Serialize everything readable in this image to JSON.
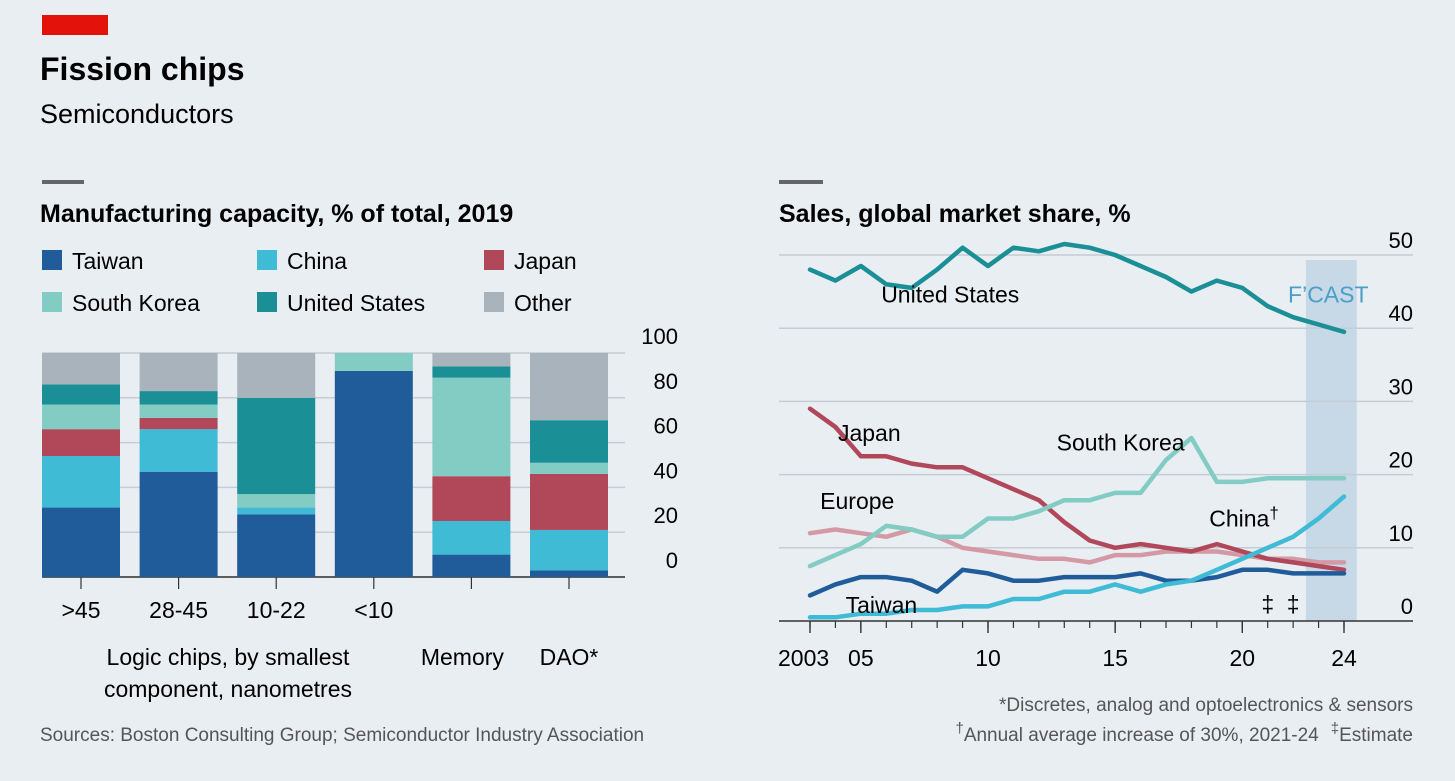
{
  "header": {
    "title": "Fission chips",
    "subtitle": "Semiconductors"
  },
  "colors": {
    "red_tag": "#e3120b",
    "bg": "#e9eef3",
    "Taiwan": "#1f5c99",
    "China": "#3fbbd6",
    "Japan": "#b0485a",
    "South Korea": "#82ccc3",
    "United States": "#1a8f96",
    "Other": "#a9b3bc",
    "Europe": "#d39aa6",
    "forecast_band": "#c7d8e6"
  },
  "footer": {
    "sources": "Sources: Boston Consulting Group; Semiconductor Industry Association",
    "note1": "*Discretes, analog and optoelectronics & sensors",
    "note2_mark": "†",
    "note2": "Annual average increase of 30%, 2021-24",
    "note3_mark": "‡",
    "note3": "Estimate"
  },
  "chart_data": [
    {
      "type": "bar",
      "stacked": true,
      "title": "Manufacturing capacity, % of total, 2019",
      "categories": [
        ">45",
        "28-45",
        "10-22",
        "<10",
        "Memory",
        "DAO*"
      ],
      "group_label": "Logic chips, by smallest component, nanometres",
      "legend": [
        "Taiwan",
        "China",
        "Japan",
        "South Korea",
        "United States",
        "Other"
      ],
      "ylim": [
        0,
        100
      ],
      "yticks": [
        0,
        20,
        40,
        60,
        80,
        100
      ],
      "series": [
        {
          "name": "Taiwan",
          "values": [
            31,
            47,
            28,
            92,
            10,
            3
          ]
        },
        {
          "name": "China",
          "values": [
            23,
            19,
            3,
            0,
            15,
            18
          ]
        },
        {
          "name": "Japan",
          "values": [
            12,
            5,
            0,
            0,
            20,
            25
          ]
        },
        {
          "name": "South Korea",
          "values": [
            11,
            6,
            6,
            8,
            44,
            5
          ]
        },
        {
          "name": "United States",
          "values": [
            9,
            6,
            43,
            0,
            5,
            19
          ]
        },
        {
          "name": "Other",
          "values": [
            14,
            17,
            20,
            0,
            6,
            30
          ]
        }
      ]
    },
    {
      "type": "line",
      "title": "Sales, global market share, %",
      "x": [
        2003,
        2004,
        2005,
        2006,
        2007,
        2008,
        2009,
        2010,
        2011,
        2012,
        2013,
        2014,
        2015,
        2016,
        2017,
        2018,
        2019,
        2020,
        2021,
        2022,
        2023,
        2024
      ],
      "xticks": [
        2003,
        2005,
        2010,
        2015,
        2020,
        2024
      ],
      "xtick_labels": [
        "2003",
        "05",
        "10",
        "15",
        "20",
        "24"
      ],
      "ylim": [
        0,
        50
      ],
      "yticks": [
        0,
        10,
        20,
        30,
        40,
        50
      ],
      "forecast_label": "F’CAST",
      "forecast_range": [
        2022.5,
        2024.5
      ],
      "estimate_marks": [
        {
          "x": 2021,
          "mark": "‡"
        },
        {
          "x": 2022,
          "mark": "‡"
        }
      ],
      "series": [
        {
          "name": "United States",
          "label": "United States",
          "values": [
            48,
            46.5,
            48.5,
            46,
            45.5,
            48,
            51,
            48.5,
            51,
            50.5,
            51.5,
            51,
            50,
            48.5,
            47,
            45,
            46.5,
            45.5,
            43,
            41.5,
            40.5,
            39.5
          ]
        },
        {
          "name": "Japan",
          "label": "Japan",
          "values": [
            29,
            26.5,
            22.5,
            22.5,
            21.5,
            21,
            21,
            19.5,
            18,
            16.5,
            13.5,
            11,
            10,
            10.5,
            10,
            9.5,
            10.5,
            9.5,
            8.5,
            8,
            7.5,
            7
          ]
        },
        {
          "name": "South Korea",
          "label": "South Korea",
          "values": [
            7.5,
            9,
            10.5,
            13,
            12.5,
            11.5,
            11.5,
            14,
            14,
            15,
            16.5,
            16.5,
            17.5,
            17.5,
            22,
            25,
            19,
            19,
            19.5,
            19.5,
            19.5,
            19.5
          ]
        },
        {
          "name": "Europe",
          "label": "Europe",
          "values": [
            12,
            12.5,
            12,
            11.5,
            12.5,
            11.5,
            10,
            9.5,
            9,
            8.5,
            8.5,
            8,
            9,
            9,
            9.5,
            9.5,
            9.5,
            9,
            8.5,
            8.5,
            8,
            8
          ]
        },
        {
          "name": "China",
          "label": "China",
          "mark": "†",
          "values": [
            0.5,
            0.5,
            1,
            1,
            1.5,
            1.5,
            2,
            2,
            3,
            3,
            4,
            4,
            5,
            4,
            5,
            5.5,
            7,
            8.5,
            10,
            11.5,
            14,
            17
          ]
        },
        {
          "name": "Taiwan",
          "label": "Taiwan",
          "values": [
            3.5,
            5,
            6,
            6,
            5.5,
            4,
            7,
            6.5,
            5.5,
            5.5,
            6,
            6,
            6,
            6.5,
            5.5,
            5.5,
            6,
            7,
            7,
            6.5,
            6.5,
            6.5
          ]
        }
      ]
    }
  ]
}
